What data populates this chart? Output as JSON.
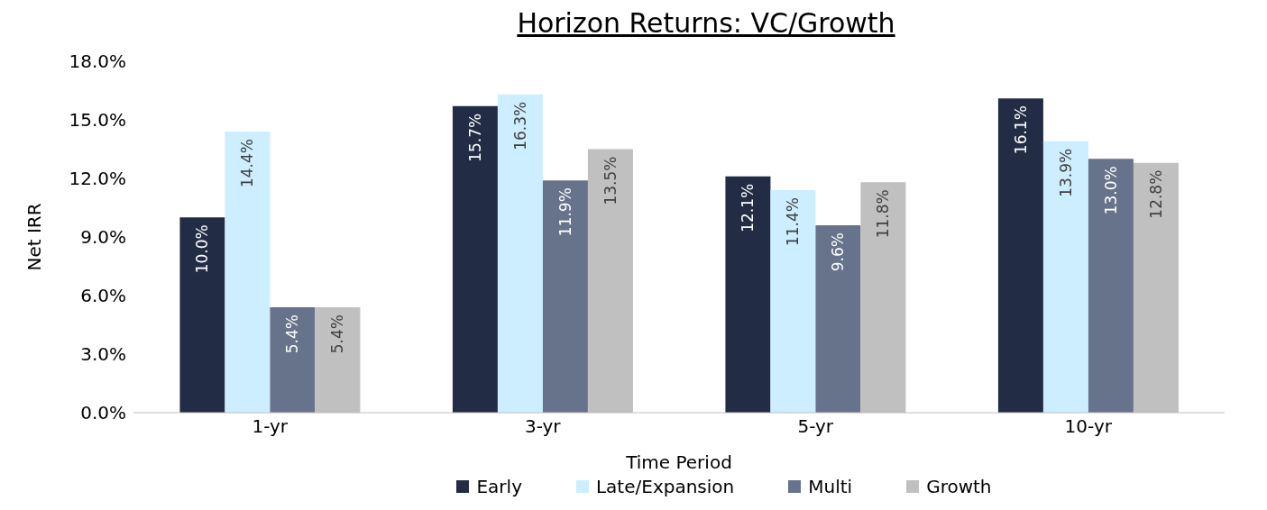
{
  "chart_data": {
    "type": "bar",
    "title": "Horizon Returns: VC/Growth",
    "xlabel": "Time Period",
    "ylabel": "Net IRR",
    "categories": [
      "1-yr",
      "3-yr",
      "5-yr",
      "10-yr"
    ],
    "series": [
      {
        "name": "Early",
        "color": "#222d45",
        "values": [
          10.0,
          15.7,
          12.1,
          16.1
        ],
        "value_labels": [
          "10.0%",
          "15.7%",
          "12.1%",
          "16.1%"
        ]
      },
      {
        "name": "Late/Expansion",
        "color": "#cceeff",
        "values": [
          14.4,
          16.3,
          11.4,
          13.9
        ],
        "value_labels": [
          "14.4%",
          "16.3%",
          "11.4%",
          "13.9%"
        ]
      },
      {
        "name": "Multi",
        "color": "#66738a",
        "values": [
          5.4,
          11.9,
          9.6,
          13.0
        ],
        "value_labels": [
          "5.4%",
          "11.9%",
          "9.6%",
          "13.0%"
        ]
      },
      {
        "name": "Growth",
        "color": "#c0c0c0",
        "values": [
          5.4,
          13.5,
          11.8,
          12.8
        ],
        "value_labels": [
          "5.4%",
          "13.5%",
          "11.8%",
          "12.8%"
        ]
      }
    ],
    "ylim": [
      0,
      18
    ],
    "yticks": [
      {
        "value": 0,
        "label": "0.0%"
      },
      {
        "value": 3,
        "label": "3.0%"
      },
      {
        "value": 6,
        "label": "6.0%"
      },
      {
        "value": 9,
        "label": "9.0%"
      },
      {
        "value": 12,
        "label": "12.0%"
      },
      {
        "value": 15,
        "label": "15.0%"
      },
      {
        "value": 18,
        "label": "18.0%"
      }
    ],
    "grid": false,
    "legend": "bottom"
  }
}
